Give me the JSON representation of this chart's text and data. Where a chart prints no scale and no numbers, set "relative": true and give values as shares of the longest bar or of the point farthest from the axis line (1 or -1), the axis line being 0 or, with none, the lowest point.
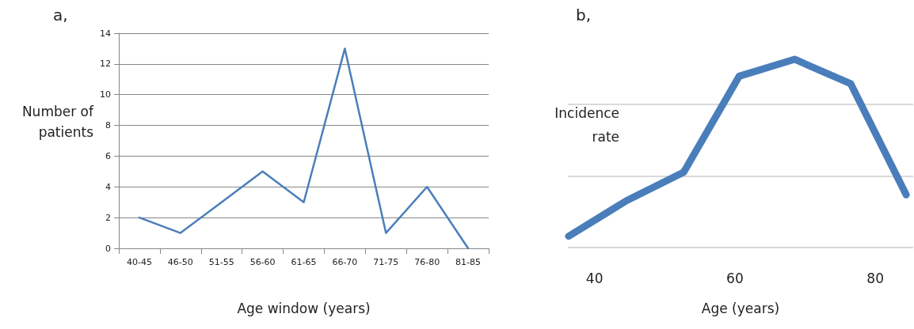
{
  "chart_data": [
    {
      "type": "line",
      "title": "a,",
      "xlabel": "Age window (years)",
      "ylabel": "Number of\npatients",
      "categories": [
        "40-45",
        "46-50",
        "51-55",
        "56-60",
        "61-65",
        "66-70",
        "71-75",
        "76-80",
        "81-85"
      ],
      "series": [
        {
          "color": "#4a7ebb",
          "values": [
            2,
            1,
            3,
            5,
            3,
            13,
            1,
            4,
            0
          ]
        }
      ],
      "ylim": [
        0,
        14
      ],
      "yticks": [
        0,
        2,
        4,
        6,
        8,
        10,
        12,
        14
      ],
      "grid": "y",
      "marker": "none",
      "line_style": "solid"
    },
    {
      "type": "line",
      "title": "b,",
      "xlabel": "Age (years)",
      "ylabel": "Incidence\nrate",
      "relative": true,
      "x": [
        36.3,
        44.6,
        52.7,
        60.6,
        68.5,
        76.5,
        84.4
      ],
      "series": [
        {
          "color": "#4a7ebb",
          "values": [
            0.06,
            0.25,
            0.4,
            0.91,
            1,
            0.87,
            0.28
          ]
        }
      ],
      "xlim": [
        36.2,
        85.4
      ],
      "xticks": [
        40,
        60,
        80
      ],
      "ref_lines": [
        {
          "axis": "y",
          "value": 0,
          "color": "#d9d9d9"
        },
        {
          "axis": "y",
          "value": 0.38,
          "color": "#d9d9d9"
        },
        {
          "axis": "y",
          "value": 0.76,
          "color": "#d9d9d9"
        }
      ],
      "tick_labels": "x",
      "marker": "none",
      "line_style": "solid"
    }
  ]
}
